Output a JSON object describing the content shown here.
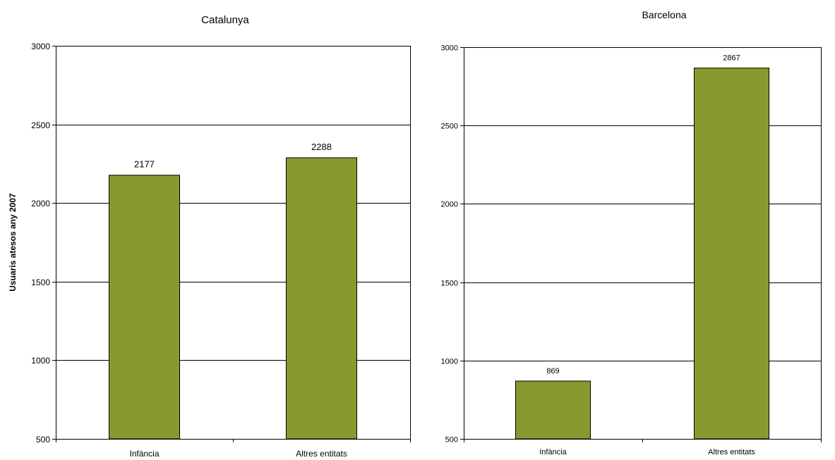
{
  "colors": {
    "bar": "#869A2F",
    "bar_stroke": "#000000",
    "grid": "#000000",
    "background": "#ffffff"
  },
  "chart_data": [
    {
      "type": "bar",
      "title": "Catalunya",
      "xlabel": "",
      "ylabel": "Usuaris atesos any 2007",
      "categories": [
        "Infància",
        "Altres entitats"
      ],
      "values": [
        2177,
        2288
      ],
      "data_labels": [
        "2177",
        "2288"
      ],
      "ylim": [
        500,
        3000
      ],
      "yticks": [
        500,
        1000,
        1500,
        2000,
        2500,
        3000
      ],
      "ytick_labels": [
        "500",
        "1000",
        "1500",
        "2000",
        "2500",
        "3000"
      ],
      "grid": true,
      "legend": "none"
    },
    {
      "type": "bar",
      "title": "Barcelona",
      "xlabel": "",
      "ylabel": "",
      "categories": [
        "Infància",
        "Altres entitats"
      ],
      "values": [
        869,
        2867
      ],
      "data_labels": [
        "869",
        "2867"
      ],
      "ylim": [
        500,
        3000
      ],
      "yticks": [
        500,
        1000,
        1500,
        2000,
        2500,
        3000
      ],
      "ytick_labels": [
        "500",
        "1000",
        "1500",
        "2000",
        "2500",
        "3000"
      ],
      "grid": true,
      "legend": "none"
    }
  ]
}
